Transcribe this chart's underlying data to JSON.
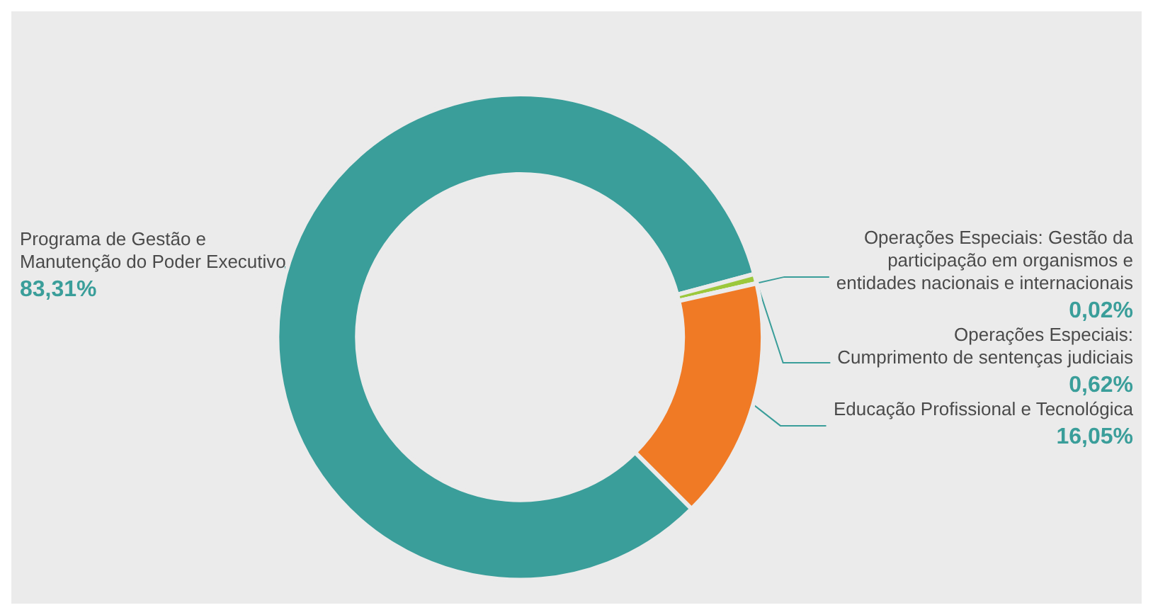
{
  "chart_data": {
    "type": "donut",
    "categories": [
      "Programa de Gestão e\nManutenção do Poder Executivo",
      "Operações Especiais:\nCumprimento de sentenças judiciais",
      "Operações Especiais: Gestão da\nparticipação em organismos e\nentidades nacionais e internacionais",
      "Educação Profissional e Tecnológica"
    ],
    "values": [
      83.31,
      0.62,
      0.02,
      16.05
    ],
    "colors": [
      "#3a9e9a",
      "#9cc83c",
      "#5fb3b3",
      "#f07a25"
    ],
    "value_labels": [
      "83,31%",
      "0,62%",
      "0,02%",
      "16,05%"
    ],
    "legend": false
  }
}
